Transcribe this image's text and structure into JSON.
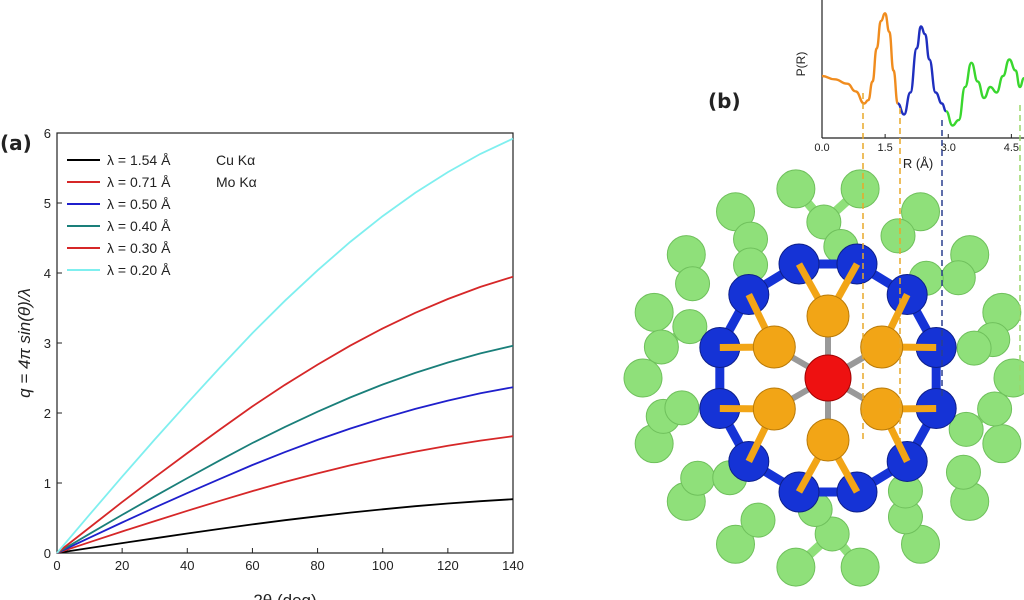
{
  "chart_data": [
    {
      "type": "line",
      "panel_label": "(a)",
      "xlabel": "2θ (deg)",
      "ylabel": "q = 4π sin(θ)/λ",
      "xlim": [
        0,
        140
      ],
      "ylim": [
        0,
        6
      ],
      "x_ticks": [
        0,
        20,
        40,
        60,
        80,
        100,
        120,
        140
      ],
      "y_ticks": [
        0,
        1,
        2,
        3,
        4,
        5,
        6
      ],
      "legend_position": "top-left",
      "grid": false,
      "x": [
        0,
        10,
        20,
        30,
        40,
        50,
        60,
        70,
        80,
        90,
        100,
        110,
        120,
        130,
        140
      ],
      "series": [
        {
          "name": "λ = 1.54 Å",
          "note": "Cu Kα",
          "color": "#000000",
          "values": [
            0.0,
            0.071,
            0.141,
            0.21,
            0.278,
            0.344,
            0.408,
            0.468,
            0.524,
            0.577,
            0.625,
            0.668,
            0.707,
            0.74,
            0.769
          ]
        },
        {
          "name": "λ = 0.71 Å",
          "note": "Mo Kα",
          "color": "#d62728",
          "values": [
            0.0,
            0.154,
            0.307,
            0.456,
            0.603,
            0.746,
            0.885,
            1.015,
            1.137,
            1.251,
            1.356,
            1.449,
            1.533,
            1.606,
            1.668
          ]
        },
        {
          "name": "λ = 0.50 Å",
          "color": "#1f1fcc",
          "values": [
            0.0,
            0.219,
            0.436,
            0.648,
            0.856,
            1.059,
            1.257,
            1.442,
            1.615,
            1.777,
            1.925,
            2.058,
            2.177,
            2.281,
            2.368
          ]
        },
        {
          "name": "λ = 0.40 Å",
          "color": "#1a7f7a",
          "values": [
            0.0,
            0.274,
            0.545,
            0.81,
            1.07,
            1.324,
            1.571,
            1.802,
            2.019,
            2.221,
            2.407,
            2.573,
            2.721,
            2.851,
            2.96
          ]
        },
        {
          "name": "λ = 0.30 Å",
          "color": "#d62728",
          "values": [
            0.0,
            0.365,
            0.727,
            1.081,
            1.427,
            1.765,
            2.094,
            2.403,
            2.692,
            2.962,
            3.209,
            3.431,
            3.628,
            3.801,
            3.947
          ]
        },
        {
          "name": "λ = 0.20 Å",
          "color": "#7fefef",
          "values": [
            0.0,
            0.548,
            1.09,
            1.621,
            2.14,
            2.648,
            3.142,
            3.604,
            4.039,
            4.443,
            4.813,
            5.146,
            5.442,
            5.701,
            5.92
          ]
        }
      ]
    },
    {
      "type": "line",
      "panel_label": "(b)",
      "xlabel": "R (Å)",
      "ylabel": "P(R)",
      "xlim": [
        0,
        4.8
      ],
      "x_ticks": [
        0.0,
        1.5,
        3.0,
        4.5
      ],
      "x_tick_labels": [
        "0.0",
        "1.5",
        "3.0",
        "4.5"
      ],
      "y_ticks_shown": false,
      "grid": false,
      "series": [
        {
          "color": "#f08c1e",
          "x": [
            0.0,
            0.3,
            0.6,
            0.8,
            1.0,
            1.1,
            1.2,
            1.3,
            1.4,
            1.5,
            1.6,
            1.7,
            1.8
          ],
          "values": [
            0.4,
            0.37,
            0.33,
            0.26,
            0.15,
            0.18,
            0.35,
            0.65,
            0.9,
            0.97,
            0.8,
            0.45,
            0.15
          ]
        },
        {
          "color": "#1f2fbf",
          "x": [
            1.8,
            1.95,
            2.1,
            2.25,
            2.35,
            2.45,
            2.55,
            2.7,
            2.85,
            2.95
          ],
          "values": [
            0.15,
            0.05,
            0.25,
            0.65,
            0.85,
            0.78,
            0.55,
            0.25,
            0.15,
            0.08
          ]
        },
        {
          "color": "#39d72e",
          "x": [
            2.95,
            3.1,
            3.25,
            3.4,
            3.55,
            3.7,
            3.85,
            4.0,
            4.15,
            4.3,
            4.45,
            4.6,
            4.7,
            4.8
          ],
          "values": [
            0.08,
            -0.05,
            0.0,
            0.3,
            0.52,
            0.35,
            0.2,
            0.3,
            0.25,
            0.4,
            0.55,
            0.45,
            0.3,
            0.38
          ]
        }
      ],
      "guide_lines_color": [
        "#e8a82a",
        "#e8a82a",
        "#2a3f8f",
        "#9ad86a"
      ]
    }
  ],
  "colors": {
    "atom_outer": "#8fe07a",
    "atom_blue": "#1533d6",
    "atom_orange": "#f2a516",
    "atom_center": "#ee1111",
    "bond_grey": "#999999"
  }
}
